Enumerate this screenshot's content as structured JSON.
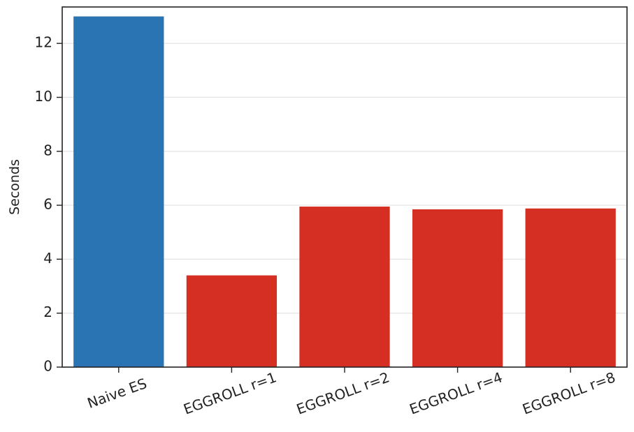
{
  "chart_data": {
    "type": "bar",
    "title": "",
    "xlabel": "",
    "ylabel": "Seconds",
    "categories": [
      "Naive ES",
      "EGGROLL r=1",
      "EGGROLL r=2",
      "EGGROLL r=4",
      "EGGROLL r=8"
    ],
    "values": [
      13.0,
      3.4,
      5.95,
      5.85,
      5.88
    ],
    "colors": [
      "#2b74b3",
      "#d52e22",
      "#d52e22",
      "#d52e22",
      "#d52e22"
    ],
    "ylim": [
      0,
      13.35
    ],
    "yticks": [
      0,
      2,
      4,
      6,
      8,
      10,
      12
    ],
    "grid": "horizontal",
    "legend": "none"
  }
}
